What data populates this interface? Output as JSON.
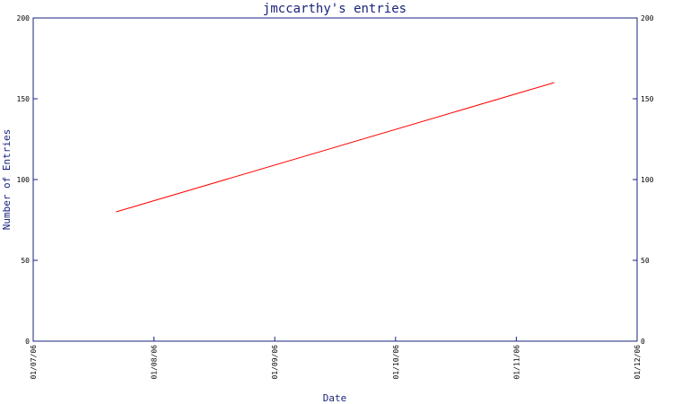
{
  "chart_data": {
    "type": "line",
    "title": "jmccarthy's entries",
    "xlabel": "Date",
    "ylabel": "Number of Entries",
    "x_tick_labels": [
      "01/07/06",
      "01/08/06",
      "01/09/06",
      "01/10/06",
      "01/11/06",
      "01/12/06"
    ],
    "y_ticks": [
      0,
      50,
      100,
      150,
      200
    ],
    "ylim": [
      0,
      200
    ],
    "xlim": [
      "2006-07-01",
      "2006-12-01"
    ],
    "y_axis_right": true,
    "grid": false,
    "legend": "none",
    "series": [
      {
        "color": "#ff0000",
        "points": [
          {
            "x": "2006-07-22",
            "y": 80
          },
          {
            "x": "2006-11-10",
            "y": 160
          }
        ]
      }
    ],
    "colors": {
      "axis": "#1a237e",
      "title": "#1a237e",
      "line": "#ff0000",
      "ticks": "#000000"
    }
  }
}
